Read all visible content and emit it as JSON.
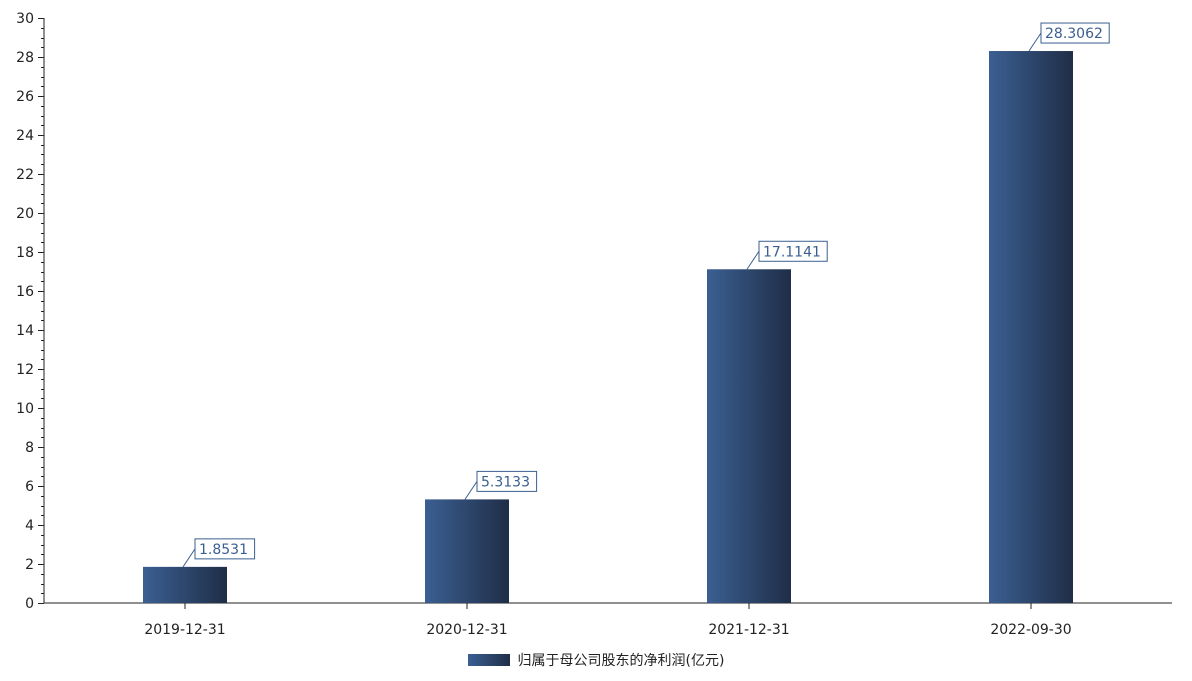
{
  "chart_data": {
    "type": "bar",
    "categories": [
      "2019-12-31",
      "2020-12-31",
      "2021-12-31",
      "2022-09-30"
    ],
    "series": [
      {
        "name": "归属于母公司股东的净利润(亿元)",
        "values": [
          1.8531,
          5.3133,
          17.1141,
          28.3062
        ]
      }
    ],
    "data_labels": [
      "1.8531",
      "5.3133",
      "17.1141",
      "28.3062"
    ],
    "ylim": [
      0,
      30
    ],
    "yticks": [
      0,
      2,
      4,
      6,
      8,
      10,
      12,
      14,
      16,
      18,
      20,
      22,
      24,
      26,
      28,
      30
    ],
    "grid": false,
    "legend_position": "bottom-center",
    "colors": {
      "bar_start": "#3b5f92",
      "bar_end": "#1f2e47",
      "label_text": "#3a5f8f",
      "axis": "#222222"
    }
  }
}
